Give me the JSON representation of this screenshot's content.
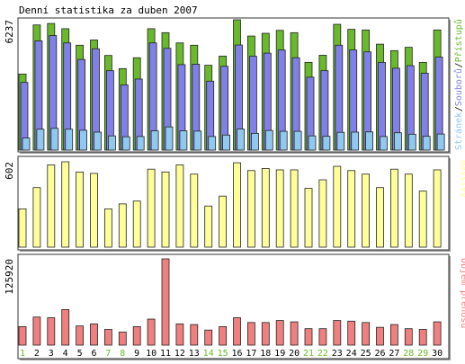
{
  "chart_data": [
    {
      "type": "bar",
      "panel": "hits-files-pages",
      "title": "Denní statistika za duben 2007",
      "y_max_label": "6237",
      "ylim": [
        0,
        6237
      ],
      "categories": [
        "1",
        "2",
        "3",
        "4",
        "5",
        "6",
        "7",
        "8",
        "9",
        "10",
        "11",
        "12",
        "13",
        "14",
        "15",
        "16",
        "17",
        "18",
        "19",
        "20",
        "21",
        "22",
        "23",
        "24",
        "25",
        "26",
        "27",
        "28",
        "29",
        "30"
      ],
      "series": [
        {
          "name": "Přístupů",
          "color": "#6ab82c",
          "values": [
            3640,
            5990,
            6060,
            5810,
            5020,
            5270,
            4530,
            3900,
            4420,
            5810,
            5620,
            5130,
            5020,
            4060,
            4500,
            6237,
            5460,
            5590,
            5730,
            5620,
            4200,
            4540,
            6020,
            5780,
            5750,
            5070,
            4760,
            4920,
            4200,
            5750
          ]
        },
        {
          "name": "Souborů",
          "color": "#8080e8",
          "values": [
            3240,
            5230,
            5480,
            5130,
            4340,
            4850,
            3800,
            3120,
            3400,
            5130,
            4870,
            4090,
            4110,
            3300,
            4010,
            5030,
            4490,
            4640,
            4790,
            4420,
            3490,
            3800,
            5020,
            4790,
            4700,
            4200,
            3920,
            4040,
            3680,
            4450
          ]
        },
        {
          "name": "Stránek",
          "color": "#90c8f0",
          "values": [
            580,
            1000,
            1040,
            1000,
            950,
            860,
            680,
            640,
            650,
            920,
            1110,
            920,
            910,
            650,
            720,
            1010,
            800,
            940,
            900,
            900,
            680,
            660,
            850,
            860,
            870,
            650,
            830,
            760,
            660,
            770
          ]
        }
      ],
      "legend": "right"
    },
    {
      "type": "bar",
      "panel": "visits",
      "y_max_label": "602",
      "ylim": [
        0,
        602
      ],
      "categories": [
        "1",
        "2",
        "3",
        "4",
        "5",
        "6",
        "7",
        "8",
        "9",
        "10",
        "11",
        "12",
        "13",
        "14",
        "15",
        "16",
        "17",
        "18",
        "19",
        "20",
        "21",
        "22",
        "23",
        "24",
        "25",
        "26",
        "27",
        "28",
        "29",
        "30"
      ],
      "series": [
        {
          "name": "Návštěv",
          "color": "#ffff99",
          "values": [
            270,
            420,
            580,
            602,
            530,
            520,
            270,
            305,
            325,
            550,
            530,
            580,
            515,
            290,
            360,
            595,
            540,
            555,
            545,
            545,
            415,
            475,
            570,
            540,
            515,
            420,
            550,
            515,
            395,
            545
          ]
        }
      ],
      "legend": "right"
    },
    {
      "type": "bar",
      "panel": "transfer",
      "y_max_label": "125920",
      "ylim": [
        0,
        125920
      ],
      "categories": [
        "1",
        "2",
        "3",
        "4",
        "5",
        "6",
        "7",
        "8",
        "9",
        "10",
        "11",
        "12",
        "13",
        "14",
        "15",
        "16",
        "17",
        "18",
        "19",
        "20",
        "21",
        "22",
        "23",
        "24",
        "25",
        "26",
        "27",
        "28",
        "29",
        "30"
      ],
      "series": [
        {
          "name": "Objem přenosu",
          "color": "#f08080",
          "values": [
            27000,
            41000,
            40000,
            52000,
            28000,
            31000,
            23000,
            19000,
            27000,
            38000,
            125920,
            31000,
            30000,
            22000,
            27000,
            40000,
            33000,
            33000,
            36000,
            34000,
            24000,
            24000,
            36000,
            35000,
            33000,
            26000,
            30000,
            24000,
            23000,
            34000
          ]
        }
      ],
      "legend": "right"
    }
  ],
  "x_axis": {
    "labels": [
      "1",
      "2",
      "3",
      "4",
      "5",
      "6",
      "7",
      "8",
      "9",
      "10",
      "11",
      "12",
      "13",
      "14",
      "15",
      "16",
      "17",
      "18",
      "19",
      "20",
      "21",
      "22",
      "23",
      "24",
      "25",
      "26",
      "27",
      "28",
      "29",
      "30"
    ],
    "weekend_days": [
      "1",
      "7",
      "8",
      "14",
      "15",
      "21",
      "22",
      "28",
      "29"
    ],
    "weekday_color": "#000000",
    "weekend_color": "#6ab82c"
  }
}
